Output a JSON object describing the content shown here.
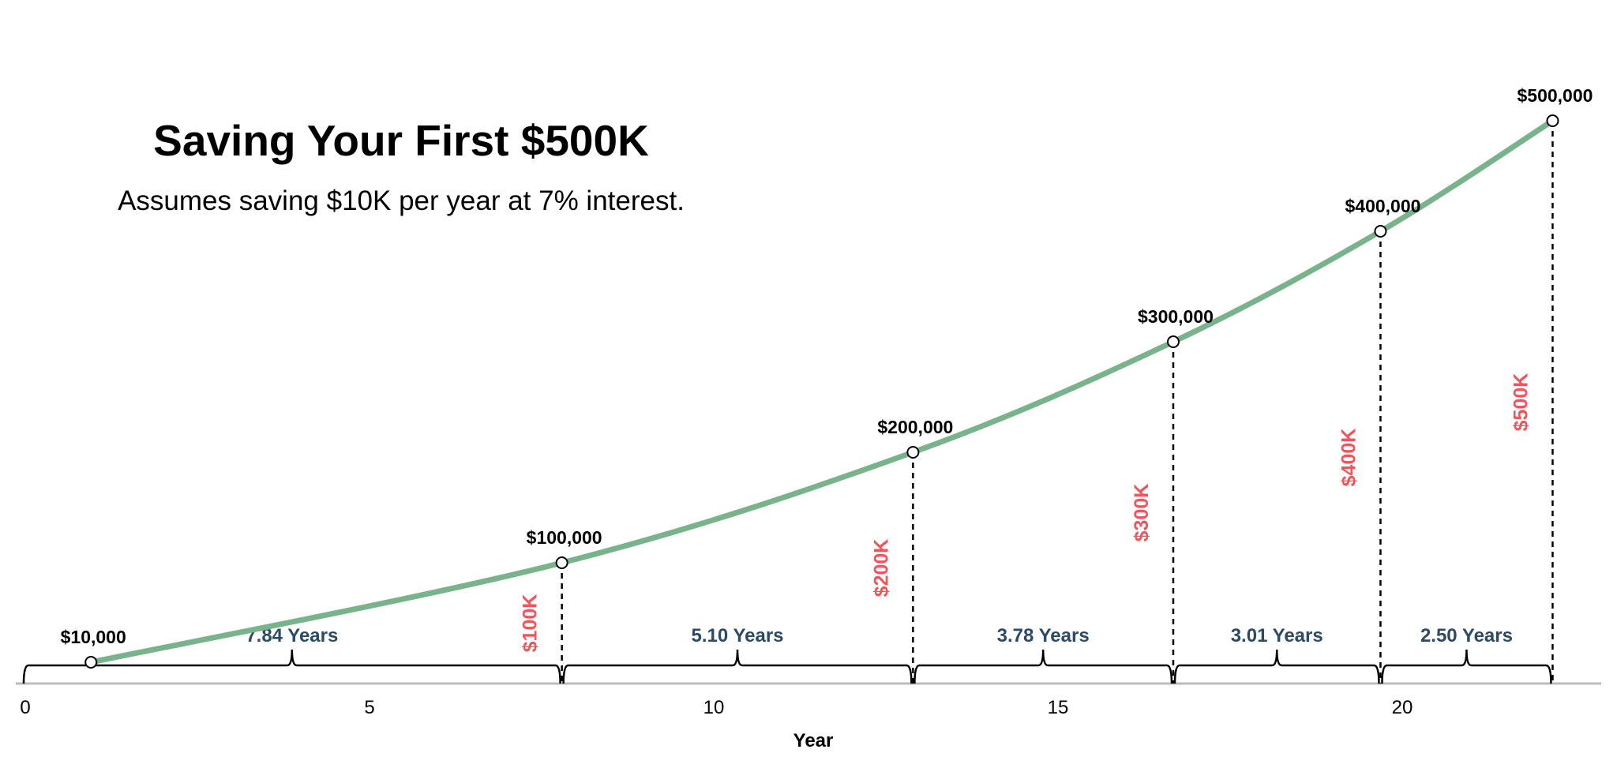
{
  "chart_data": {
    "type": "line",
    "title": "Saving Your First $500K",
    "subtitle": "Assumes saving $10K per year at 7% interest.",
    "xlabel": "Year",
    "ylabel": "",
    "xlim": [
      0,
      23
    ],
    "ylim": [
      0,
      500000
    ],
    "x_ticks": [
      0,
      5,
      10,
      15,
      20
    ],
    "x_tick_labels": [
      "0",
      "5",
      "10",
      "15",
      "20"
    ],
    "grid": false,
    "legend": "none",
    "series": [
      {
        "color": "#78b38c",
        "x": [
          1,
          7.84,
          12.94,
          16.72,
          19.73,
          22.23
        ],
        "y": [
          10000,
          100000,
          200000,
          300000,
          400000,
          500000
        ]
      }
    ],
    "points": [
      {
        "x": 1,
        "y": 10000,
        "label": "$10,000"
      },
      {
        "x": 7.84,
        "y": 100000,
        "label": "$100,000"
      },
      {
        "x": 12.94,
        "y": 200000,
        "label": "$200,000"
      },
      {
        "x": 16.72,
        "y": 300000,
        "label": "$300,000"
      },
      {
        "x": 19.73,
        "y": 400000,
        "label": "$400,000"
      },
      {
        "x": 22.23,
        "y": 500000,
        "label": "$500,000"
      }
    ],
    "milestones": [
      {
        "x": 7.84,
        "y": 100000,
        "label": "$100K"
      },
      {
        "x": 12.94,
        "y": 200000,
        "label": "$200K"
      },
      {
        "x": 16.72,
        "y": 300000,
        "label": "$300K"
      },
      {
        "x": 19.73,
        "y": 400000,
        "label": "$400K"
      },
      {
        "x": 22.23,
        "y": 500000,
        "label": "$500K"
      }
    ],
    "intervals": [
      {
        "start": 0,
        "end": 7.84,
        "label": "7.84 Years"
      },
      {
        "start": 7.84,
        "end": 12.94,
        "label": "5.10 Years"
      },
      {
        "start": 12.94,
        "end": 16.72,
        "label": "3.78 Years"
      },
      {
        "start": 16.72,
        "end": 19.73,
        "label": "3.01 Years"
      },
      {
        "start": 19.73,
        "end": 22.23,
        "label": "2.50 Years"
      }
    ],
    "colors": {
      "line": "#78b38c",
      "milestone_label": "#f2545b",
      "interval_label": "#2b4a66",
      "axis": "#bbbbbb"
    }
  }
}
